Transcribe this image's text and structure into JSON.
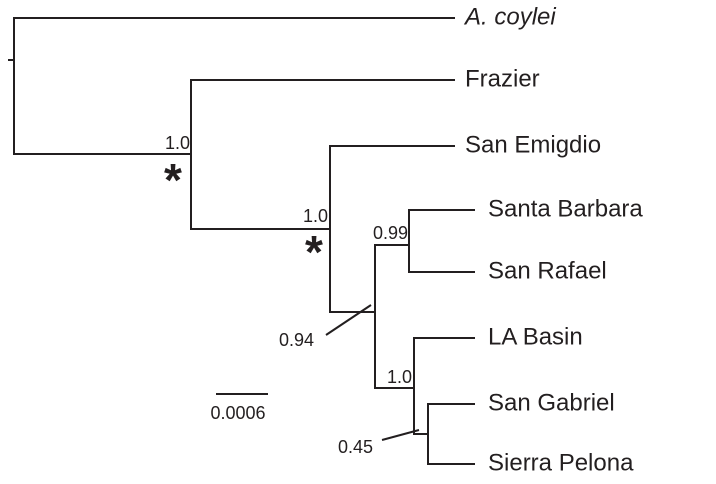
{
  "taxa": [
    "A. coylei",
    "Frazier",
    "San Emigdio",
    "Santa Barbara",
    "San Rafael",
    "LA Basin",
    "San Gabriel",
    "Sierra Pelona"
  ],
  "support": [
    "1.0",
    "1.0",
    "0.94",
    "0.99",
    "1.0",
    "0.45"
  ],
  "significance_marks": [
    "*",
    "*"
  ],
  "scale_bar": "0.0006"
}
